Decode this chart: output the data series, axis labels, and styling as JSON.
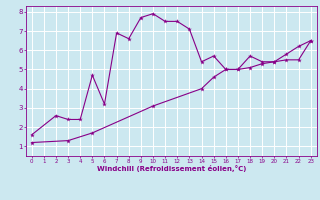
{
  "xlabel": "Windchill (Refroidissement éolien,°C)",
  "bg_color": "#cce8f0",
  "line_color": "#880088",
  "grid_color": "#ffffff",
  "xlim": [
    -0.5,
    23.5
  ],
  "ylim": [
    0.5,
    8.3
  ],
  "xticks": [
    0,
    1,
    2,
    3,
    4,
    5,
    6,
    7,
    8,
    9,
    10,
    11,
    12,
    13,
    14,
    15,
    16,
    17,
    18,
    19,
    20,
    21,
    22,
    23
  ],
  "yticks": [
    1,
    2,
    3,
    4,
    5,
    6,
    7,
    8
  ],
  "curve1_x": [
    0,
    2,
    3,
    4,
    5,
    6,
    7,
    8,
    9,
    10,
    11,
    12,
    13,
    14,
    15,
    16,
    17,
    18,
    19,
    20,
    21,
    22,
    23
  ],
  "curve1_y": [
    1.6,
    2.6,
    2.4,
    2.4,
    4.7,
    3.2,
    6.9,
    6.6,
    7.7,
    7.9,
    7.5,
    7.5,
    7.1,
    5.4,
    5.7,
    5.0,
    5.0,
    5.7,
    5.4,
    5.4,
    5.5,
    5.5,
    6.5
  ],
  "curve2_x": [
    0,
    3,
    5,
    10,
    14,
    15,
    16,
    17,
    18,
    19,
    20,
    21,
    22,
    23
  ],
  "curve2_y": [
    1.2,
    1.3,
    1.7,
    3.1,
    4.0,
    4.6,
    5.0,
    5.0,
    5.1,
    5.3,
    5.4,
    5.8,
    6.2,
    6.5
  ]
}
